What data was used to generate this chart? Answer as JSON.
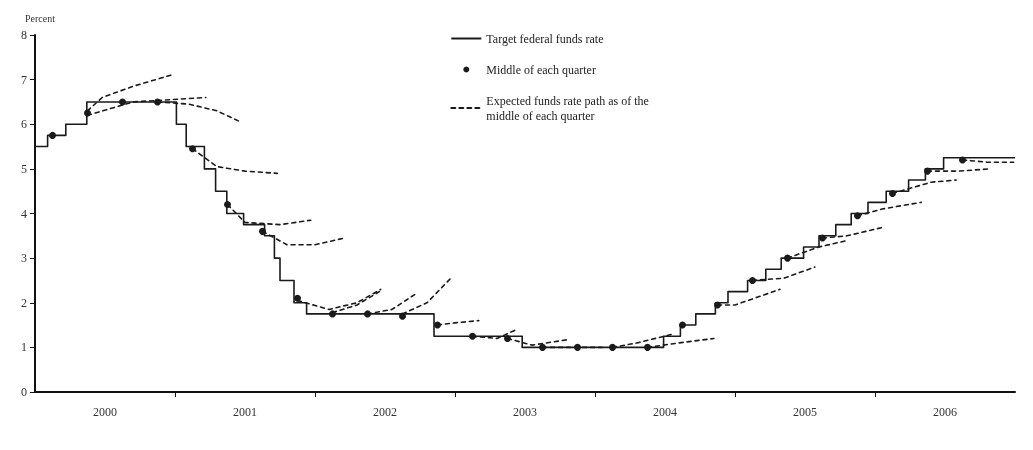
{
  "chart_data": {
    "type": "step",
    "ylabel": "Percent",
    "xlim": [
      2000,
      2007
    ],
    "ylim": [
      0,
      8
    ],
    "yticks": [
      0,
      1,
      2,
      3,
      4,
      5,
      6,
      7,
      8
    ],
    "xticks": [
      {
        "value": 2001,
        "label": null
      },
      {
        "value": 2002,
        "label": null
      },
      {
        "value": 2003,
        "label": null
      },
      {
        "value": 2004,
        "label": null
      },
      {
        "value": 2005,
        "label": null
      },
      {
        "value": 2006,
        "label": null
      },
      {
        "value": 2000.5,
        "label": "2000"
      },
      {
        "value": 2001.5,
        "label": "2001"
      },
      {
        "value": 2002.5,
        "label": "2002"
      },
      {
        "value": 2003.5,
        "label": "2003"
      },
      {
        "value": 2004.5,
        "label": "2004"
      },
      {
        "value": 2005.5,
        "label": "2005"
      },
      {
        "value": 2006.5,
        "label": "2006"
      }
    ],
    "grid": false,
    "legend": "top right",
    "series": [
      {
        "name": "Target federal funds rate",
        "color": "#1a1a1a",
        "line_style": "solid",
        "marker": "none",
        "x": [
          2000,
          2000.09,
          2000.22,
          2000.37,
          2001.01,
          2001.08,
          2001.21,
          2001.29,
          2001.37,
          2001.49,
          2001.64,
          2001.71,
          2001.75,
          2001.85,
          2001.94,
          2002.85,
          2003.48,
          2004.49,
          2004.61,
          2004.72,
          2004.86,
          2004.95,
          2005.09,
          2005.22,
          2005.33,
          2005.49,
          2005.6,
          2005.72,
          2005.83,
          2005.95,
          2006.08,
          2006.24,
          2006.36,
          2006.49,
          2007
        ],
        "values": [
          5.5,
          5.75,
          6,
          6.5,
          6,
          5.5,
          5,
          4.5,
          4,
          3.75,
          3.5,
          3,
          2.5,
          2,
          1.75,
          1.25,
          1,
          1.25,
          1.5,
          1.75,
          2,
          2.25,
          2.5,
          2.75,
          3,
          3.25,
          3.5,
          3.75,
          4,
          4.25,
          4.5,
          4.75,
          5,
          5.25,
          5.25
        ]
      },
      {
        "name": "Middle of each quarter",
        "type": "scatter",
        "color": "#1a1a1a",
        "marker": "circle",
        "x": [
          2000.125,
          2000.375,
          2000.625,
          2000.875,
          2001.125,
          2001.375,
          2001.625,
          2001.875,
          2002.125,
          2002.375,
          2002.625,
          2002.875,
          2003.125,
          2003.375,
          2003.625,
          2003.875,
          2004.125,
          2004.375,
          2004.625,
          2004.875,
          2005.125,
          2005.375,
          2005.625,
          2005.875,
          2006.125,
          2006.375,
          2006.625
        ],
        "values": [
          5.75,
          6.25,
          6.5,
          6.5,
          5.45,
          4.2,
          3.6,
          2.1,
          1.75,
          1.75,
          1.7,
          1.5,
          1.25,
          1.2,
          1,
          1,
          1,
          1,
          1.5,
          1.95,
          2.5,
          3,
          3.45,
          3.95,
          4.45,
          4.95,
          5.2
        ]
      },
      {
        "name": "Expected funds rate path as of the middle of each quarter",
        "type": "line",
        "color": "#1a1a1a",
        "line_style": "dashed",
        "marker": "none",
        "x": [
          2000.375,
          2000.48,
          2000.7,
          2000.97
        ],
        "values": [
          6.3,
          6.6,
          6.85,
          7.1
        ]
      },
      {
        "type": "line",
        "color": "#1a1a1a",
        "line_style": "dashed",
        "marker": "none",
        "x": [
          2000.375,
          2000.7,
          2001.22
        ],
        "values": [
          6.2,
          6.5,
          6.6
        ]
      },
      {
        "type": "line",
        "color": "#1a1a1a",
        "line_style": "dashed",
        "marker": "none",
        "x": [
          2000.875,
          2001.1,
          2001.3,
          2001.47
        ],
        "values": [
          6.5,
          6.45,
          6.3,
          6.05
        ]
      },
      {
        "type": "line",
        "color": "#1a1a1a",
        "line_style": "dashed",
        "marker": "none",
        "x": [
          2001.125,
          2001.3,
          2001.5,
          2001.73
        ],
        "values": [
          5.45,
          5.05,
          4.95,
          4.9
        ]
      },
      {
        "type": "line",
        "color": "#1a1a1a",
        "line_style": "dashed",
        "marker": "none",
        "x": [
          2001.375,
          2001.5,
          2001.75,
          2001.97
        ],
        "values": [
          4.2,
          3.8,
          3.75,
          3.85
        ]
      },
      {
        "type": "line",
        "color": "#1a1a1a",
        "line_style": "dashed",
        "marker": "none",
        "x": [
          2001.625,
          2001.8,
          2002,
          2002.21
        ],
        "values": [
          3.6,
          3.3,
          3.3,
          3.45
        ]
      },
      {
        "type": "line",
        "color": "#1a1a1a",
        "line_style": "dashed",
        "marker": "none",
        "x": [
          2001.875,
          2002.1,
          2002.3,
          2002.47
        ],
        "values": [
          2.05,
          1.85,
          2,
          2.3
        ]
      },
      {
        "type": "line",
        "color": "#1a1a1a",
        "line_style": "dashed",
        "marker": "none",
        "x": [
          2002.125,
          2002.3,
          2002.46
        ],
        "values": [
          1.78,
          1.95,
          2.25
        ]
      },
      {
        "type": "line",
        "color": "#1a1a1a",
        "line_style": "dashed",
        "marker": "none",
        "x": [
          2002.375,
          2002.55,
          2002.72
        ],
        "values": [
          1.75,
          1.85,
          2.2
        ]
      },
      {
        "type": "line",
        "color": "#1a1a1a",
        "line_style": "dashed",
        "marker": "none",
        "x": [
          2002.625,
          2002.8,
          2002.97
        ],
        "values": [
          1.75,
          2,
          2.55
        ]
      },
      {
        "type": "line",
        "color": "#1a1a1a",
        "line_style": "dashed",
        "marker": "none",
        "x": [
          2002.875,
          2003,
          2003.17
        ],
        "values": [
          1.5,
          1.55,
          1.6
        ]
      },
      {
        "type": "line",
        "color": "#1a1a1a",
        "line_style": "dashed",
        "marker": "none",
        "x": [
          2003.125,
          2003.3,
          2003.44
        ],
        "values": [
          1.25,
          1.2,
          1.4
        ]
      },
      {
        "type": "line",
        "color": "#1a1a1a",
        "line_style": "dashed",
        "marker": "none",
        "x": [
          2003.375,
          2003.55,
          2003.8
        ],
        "values": [
          1.2,
          1.05,
          1.17
        ]
      },
      {
        "type": "line",
        "color": "#1a1a1a",
        "line_style": "dashed",
        "marker": "none",
        "x": [
          2003.625,
          2003.85,
          2004.05
        ],
        "values": [
          1,
          1,
          1
        ]
      },
      {
        "type": "line",
        "color": "#1a1a1a",
        "line_style": "dashed",
        "marker": "none",
        "x": [
          2004.125,
          2004.3,
          2004.56
        ],
        "values": [
          1,
          1.1,
          1.3
        ]
      },
      {
        "type": "line",
        "color": "#1a1a1a",
        "line_style": "dashed",
        "marker": "none",
        "x": [
          2004.375,
          2004.6,
          2004.85
        ],
        "values": [
          1,
          1.1,
          1.2
        ]
      },
      {
        "type": "line",
        "color": "#1a1a1a",
        "line_style": "dashed",
        "marker": "none",
        "x": [
          2004.875,
          2005,
          2005.32
        ],
        "values": [
          1.95,
          1.95,
          2.3
        ]
      },
      {
        "type": "line",
        "color": "#1a1a1a",
        "line_style": "dashed",
        "marker": "none",
        "x": [
          2005.125,
          2005.35,
          2005.57
        ],
        "values": [
          2.5,
          2.55,
          2.8
        ]
      },
      {
        "type": "line",
        "color": "#1a1a1a",
        "line_style": "dashed",
        "marker": "none",
        "x": [
          2005.375,
          2005.6,
          2005.81
        ],
        "values": [
          3,
          3.25,
          3.4
        ]
      },
      {
        "type": "line",
        "color": "#1a1a1a",
        "line_style": "dashed",
        "marker": "none",
        "x": [
          2005.625,
          2005.8,
          2006.07
        ],
        "values": [
          3.45,
          3.5,
          3.7
        ]
      },
      {
        "type": "line",
        "color": "#1a1a1a",
        "line_style": "dashed",
        "marker": "none",
        "x": [
          2005.875,
          2006.05,
          2006.33
        ],
        "values": [
          3.95,
          4.1,
          4.25
        ]
      },
      {
        "type": "line",
        "color": "#1a1a1a",
        "line_style": "dashed",
        "marker": "none",
        "x": [
          2006.125,
          2006.4,
          2006.58
        ],
        "values": [
          4.45,
          4.7,
          4.75
        ]
      },
      {
        "type": "line",
        "color": "#1a1a1a",
        "line_style": "dashed",
        "marker": "none",
        "x": [
          2006.375,
          2006.6,
          2006.82
        ],
        "values": [
          4.95,
          4.95,
          5
        ]
      },
      {
        "type": "line",
        "color": "#1a1a1a",
        "line_style": "dashed",
        "marker": "none",
        "x": [
          2006.625,
          2006.8,
          2006.99
        ],
        "values": [
          5.2,
          5.15,
          5.15
        ]
      }
    ]
  }
}
